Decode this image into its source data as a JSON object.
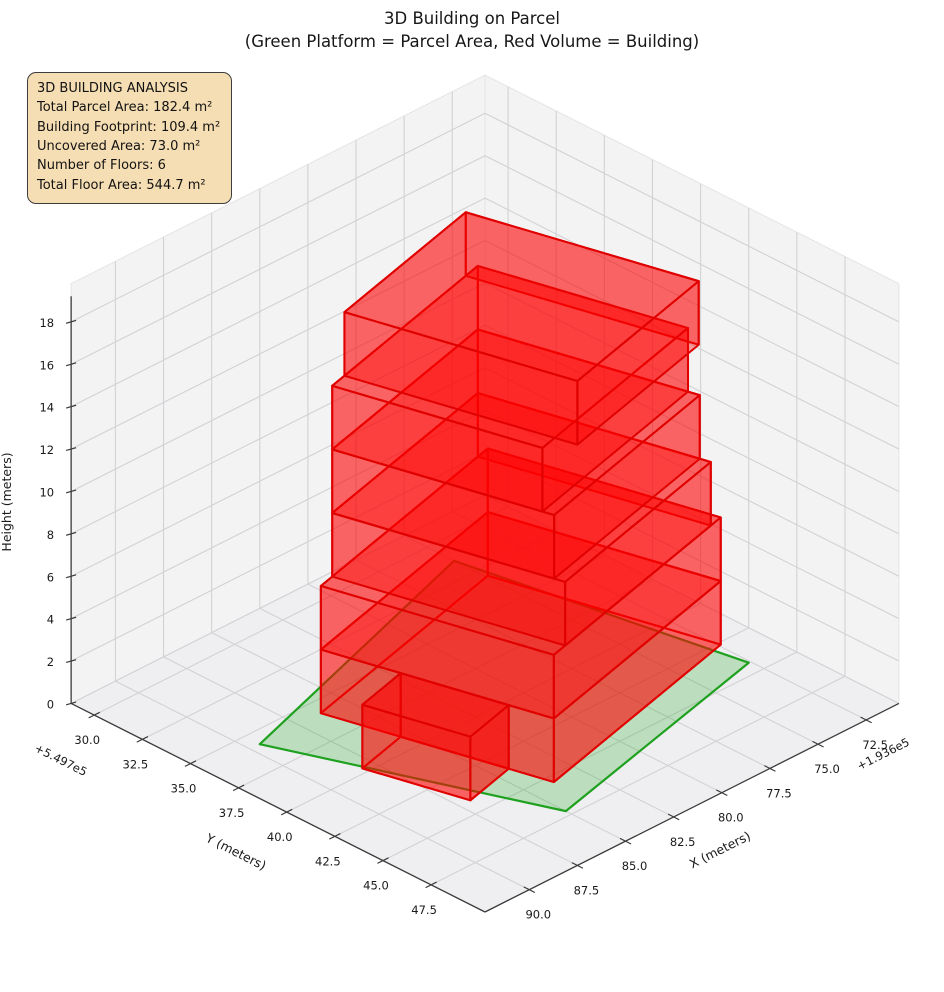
{
  "title": {
    "line1": "3D Building on Parcel",
    "line2": "(Green Platform = Parcel Area, Red Volume = Building)"
  },
  "info_box": {
    "bg_color": "#f5deb3",
    "border_color": "#3d3d3d",
    "lines": [
      "3D BUILDING ANALYSIS",
      "Total Parcel Area: 182.4 m²",
      "Building Footprint: 109.4 m²",
      "Uncovered Area: 73.0 m²",
      "Number of Floors: 6",
      "Total Floor Area: 544.7 m²"
    ]
  },
  "chart_data": {
    "type": "3d-building-extrusion",
    "view": {
      "projection": "parallel",
      "elev_deg": 30,
      "azim_deg": 45
    },
    "axes": {
      "x": {
        "label": "X (meters)",
        "offset_text": "+1.936e5",
        "ticks": [
          72.5,
          75.0,
          77.5,
          80.0,
          82.5,
          85.0,
          87.5,
          90.0
        ],
        "range": [
          70.8,
          92.3
        ]
      },
      "y": {
        "label": "Y (meters)",
        "offset_text": "+5.497e5",
        "ticks": [
          30.0,
          32.5,
          35.0,
          37.5,
          40.0,
          42.5,
          45.0,
          47.5
        ],
        "range": [
          28.8,
          50.3
        ]
      },
      "z": {
        "label": "Height (meters)",
        "ticks": [
          0,
          2,
          4,
          6,
          8,
          10,
          12,
          14,
          16,
          18
        ],
        "range": [
          0,
          19.8
        ]
      }
    },
    "parcel": {
      "polygon_xy": [
        [
          89.5,
          35.8
        ],
        [
          75.0,
          31.4
        ],
        [
          72.6,
          44.3
        ],
        [
          85.0,
          47.2
        ]
      ],
      "fill": "rgba(0,160,0,0.21)",
      "edge_color": "#1fa11f",
      "edge_width": 2.2
    },
    "building": {
      "origin_xy": [
        76.4,
        33.4
      ],
      "dir_s": [
        0.972,
        0.234
      ],
      "dir_t": [
        -0.252,
        0.968
      ],
      "floor_height_m": 3,
      "num_floors": 6,
      "floors": [
        {
          "z": [
            0,
            3
          ],
          "s": [
            -1.55,
            10.2
          ],
          "t": [
            0,
            9.92
          ]
        },
        {
          "z": [
            3,
            6
          ],
          "s": [
            -1.55,
            10.2
          ],
          "t": [
            0,
            9.92
          ]
        },
        {
          "z": [
            6,
            9
          ],
          "s": [
            -0.85,
            9.4
          ],
          "t": [
            0,
            9.92
          ]
        },
        {
          "z": [
            9,
            12
          ],
          "s": [
            -0.85,
            9.4
          ],
          "t": [
            0,
            9.45
          ]
        },
        {
          "z": [
            12,
            15
          ],
          "s": [
            -0.85,
            9.4
          ],
          "t": [
            0,
            8.95
          ]
        },
        {
          "z": [
            15,
            18
          ],
          "s": [
            0,
            8.54
          ],
          "t": [
            0,
            9.92
          ]
        }
      ],
      "annex": {
        "z": [
          0,
          3
        ],
        "s": [
          10.2,
          12.9
        ],
        "t": [
          3.4,
          8.0
        ]
      },
      "fill": "rgba(255,0,0,0.36)",
      "edge_color": "#e00000",
      "edge_width": 2
    },
    "panes": {
      "wall_fill": "#f3f3f4",
      "floor_fill": "#efeff1",
      "grid_color": "#d2d2d4",
      "spine_color": "#3a3a3a"
    }
  }
}
